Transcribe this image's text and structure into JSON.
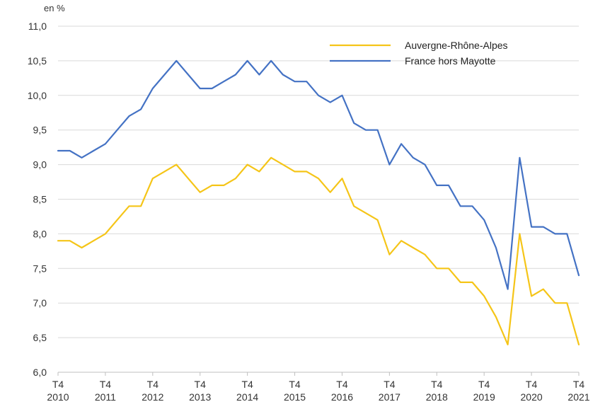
{
  "chart_data": {
    "type": "line",
    "unit_label": "en %",
    "ylim": [
      6.0,
      11.0
    ],
    "yticks": [
      "6,0",
      "6,5",
      "7,0",
      "7,5",
      "8,0",
      "8,5",
      "9,0",
      "9,5",
      "10,0",
      "10,5",
      "11,0"
    ],
    "ytick_values": [
      6.0,
      6.5,
      7.0,
      7.5,
      8.0,
      8.5,
      9.0,
      9.5,
      10.0,
      10.5,
      11.0
    ],
    "grid": "horizontal",
    "legend_position": "top-right",
    "x_tick_labels": [
      {
        "quarter": "T4",
        "year": "2010"
      },
      {
        "quarter": "T4",
        "year": "2011"
      },
      {
        "quarter": "T4",
        "year": "2012"
      },
      {
        "quarter": "T4",
        "year": "2013"
      },
      {
        "quarter": "T4",
        "year": "2014"
      },
      {
        "quarter": "T4",
        "year": "2015"
      },
      {
        "quarter": "T4",
        "year": "2016"
      },
      {
        "quarter": "T4",
        "year": "2017"
      },
      {
        "quarter": "T4",
        "year": "2018"
      },
      {
        "quarter": "T4",
        "year": "2019"
      },
      {
        "quarter": "T4",
        "year": "2020"
      },
      {
        "quarter": "T4",
        "year": "2021"
      }
    ],
    "x": [
      "2010T4",
      "2011T1",
      "2011T2",
      "2011T3",
      "2011T4",
      "2012T1",
      "2012T2",
      "2012T3",
      "2012T4",
      "2013T1",
      "2013T2",
      "2013T3",
      "2013T4",
      "2014T1",
      "2014T2",
      "2014T3",
      "2014T4",
      "2015T1",
      "2015T2",
      "2015T3",
      "2015T4",
      "2016T1",
      "2016T2",
      "2016T3",
      "2016T4",
      "2017T1",
      "2017T2",
      "2017T3",
      "2017T4",
      "2018T1",
      "2018T2",
      "2018T3",
      "2018T4",
      "2019T1",
      "2019T2",
      "2019T3",
      "2019T4",
      "2020T1",
      "2020T2",
      "2020T3",
      "2020T4",
      "2021T1",
      "2021T2",
      "2021T3",
      "2021T4"
    ],
    "series": [
      {
        "name": "Auvergne-Rhône-Alpes",
        "color": "#f5c518",
        "values": [
          7.9,
          7.9,
          7.8,
          7.9,
          8.0,
          8.2,
          8.4,
          8.4,
          8.8,
          8.9,
          9.0,
          8.8,
          8.6,
          8.7,
          8.7,
          8.8,
          9.0,
          8.9,
          9.1,
          9.0,
          8.9,
          8.9,
          8.8,
          8.6,
          8.8,
          8.4,
          8.3,
          8.2,
          7.7,
          7.9,
          7.8,
          7.7,
          7.5,
          7.5,
          7.3,
          7.3,
          7.1,
          6.8,
          6.4,
          8.0,
          7.1,
          7.2,
          7.0,
          7.0,
          6.4
        ]
      },
      {
        "name": "France hors Mayotte",
        "color": "#4472c4",
        "values": [
          9.2,
          9.2,
          9.1,
          9.2,
          9.3,
          9.5,
          9.7,
          9.8,
          10.1,
          10.3,
          10.5,
          10.3,
          10.1,
          10.1,
          10.2,
          10.3,
          10.5,
          10.3,
          10.5,
          10.3,
          10.2,
          10.2,
          10.0,
          9.9,
          10.0,
          9.6,
          9.5,
          9.5,
          9.0,
          9.3,
          9.1,
          9.0,
          8.7,
          8.7,
          8.4,
          8.4,
          8.2,
          7.8,
          7.2,
          9.1,
          8.1,
          8.1,
          8.0,
          8.0,
          7.4
        ]
      }
    ]
  }
}
